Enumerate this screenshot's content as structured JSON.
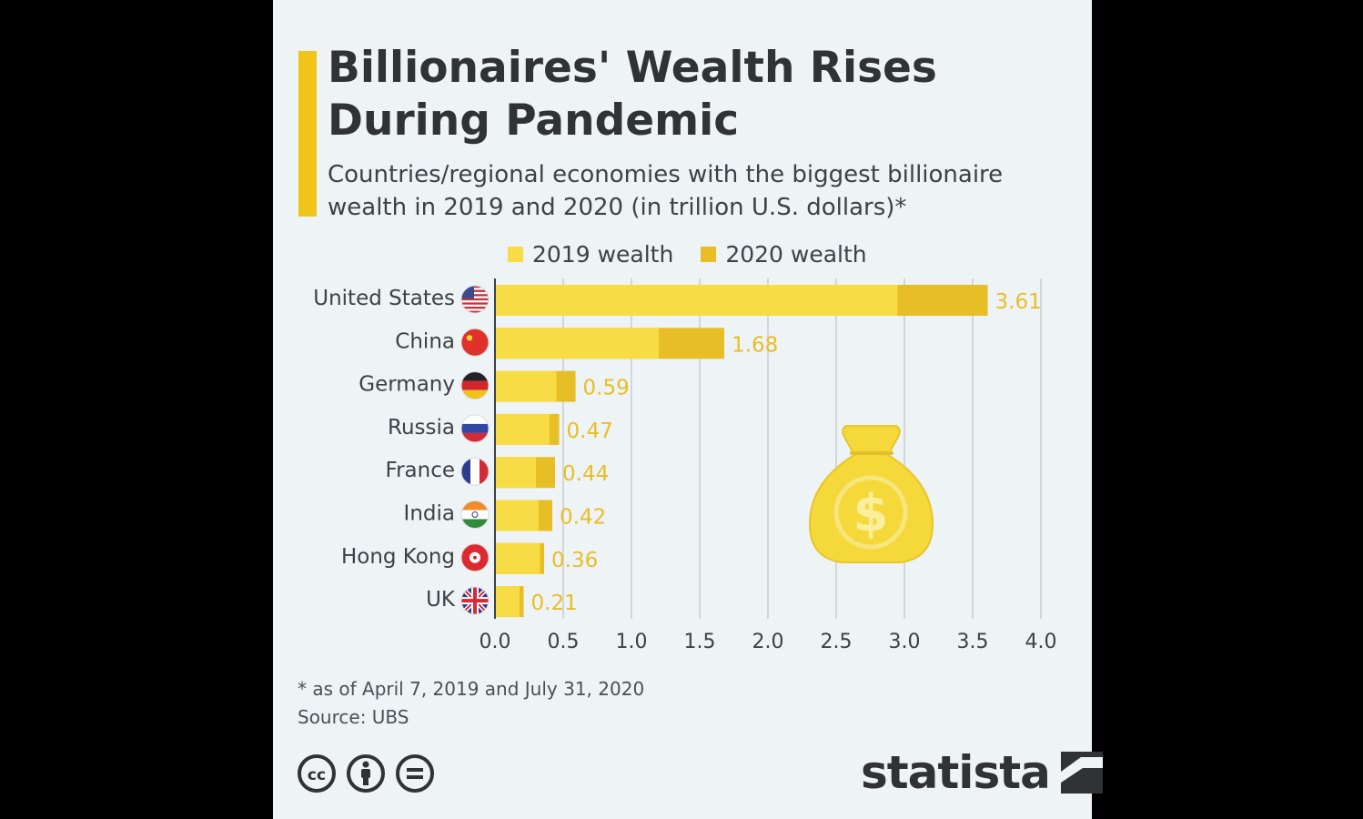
{
  "title": "Billionaires' Wealth Rises During Pandemic",
  "subtitle": "Countries/regional economies with the biggest billionaire wealth in 2019 and 2020 (in trillion U.S. dollars)*",
  "legend": [
    {
      "label": "2019 wealth",
      "color": "#f7dc45"
    },
    {
      "label": "2020 wealth",
      "color": "#e8be26"
    }
  ],
  "chart_data": {
    "type": "bar",
    "orientation": "horizontal",
    "stacked_overlay": true,
    "categories": [
      "United States",
      "China",
      "Germany",
      "Russia",
      "France",
      "India",
      "Hong Kong",
      "UK"
    ],
    "series": [
      {
        "name": "2019 wealth",
        "values": [
          2.95,
          1.2,
          0.45,
          0.4,
          0.3,
          0.32,
          0.33,
          0.18
        ]
      },
      {
        "name": "2020 wealth",
        "values": [
          3.61,
          1.68,
          0.59,
          0.47,
          0.44,
          0.42,
          0.36,
          0.21
        ]
      }
    ],
    "data_labels": [
      "3.61",
      "1.68",
      "0.59",
      "0.47",
      "0.44",
      "0.42",
      "0.36",
      "0.21"
    ],
    "xlim": [
      0,
      4
    ],
    "xticks": [
      "0.0",
      "0.5",
      "1.0",
      "1.5",
      "2.0",
      "2.5",
      "3.0",
      "3.5",
      "4.0"
    ],
    "grid": true,
    "legend_position": "top"
  },
  "footnote": "* as of April 7, 2019 and July 31, 2020",
  "source": "Source: UBS",
  "icons": [
    "cc-icon",
    "attribution-icon",
    "no-derivatives-icon",
    "money-bag-icon"
  ],
  "brand": "statista",
  "colors": {
    "accent": "#f0c419",
    "label": "#e8be26",
    "text": "#2f3336"
  }
}
